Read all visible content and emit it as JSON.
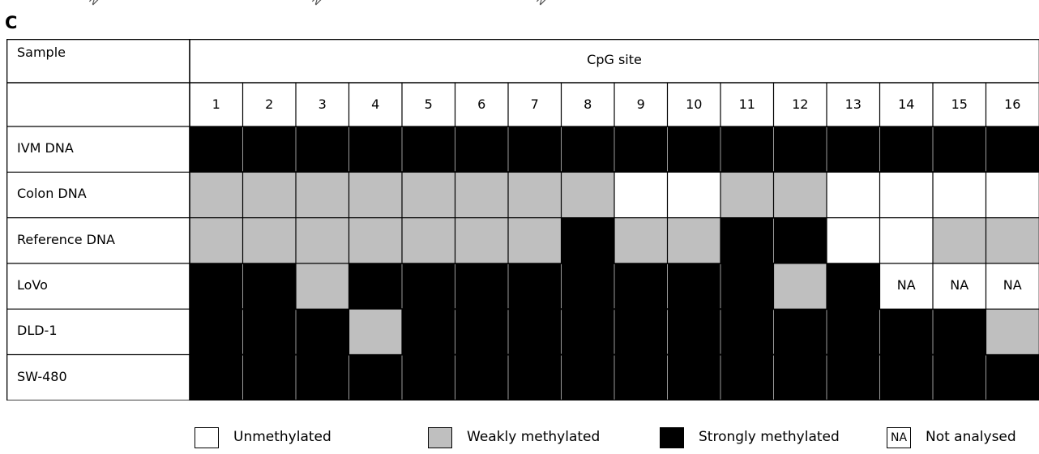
{
  "panel_label": "C",
  "colors": {
    "unmethylated": "#ffffff",
    "weakly": "#bfbfbf",
    "strongly": "#000000",
    "na": "#ffffff",
    "grid": "#000000"
  },
  "chart_data": {
    "type": "table",
    "header_sample": "Sample",
    "header_sites": "CpG site",
    "sites": [
      "1",
      "2",
      "3",
      "4",
      "5",
      "6",
      "7",
      "8",
      "9",
      "10",
      "11",
      "12",
      "13",
      "14",
      "15",
      "16"
    ],
    "rows": [
      {
        "sample": "IVM DNA",
        "states": [
          "S",
          "S",
          "S",
          "S",
          "S",
          "S",
          "S",
          "S",
          "S",
          "S",
          "S",
          "S",
          "S",
          "S",
          "S",
          "S"
        ]
      },
      {
        "sample": "Colon DNA",
        "states": [
          "W",
          "W",
          "W",
          "W",
          "W",
          "W",
          "W",
          "W",
          "U",
          "U",
          "W",
          "W",
          "U",
          "U",
          "U",
          "U"
        ]
      },
      {
        "sample": "Reference DNA",
        "states": [
          "W",
          "W",
          "W",
          "W",
          "W",
          "W",
          "W",
          "S",
          "W",
          "W",
          "S",
          "S",
          "U",
          "U",
          "W",
          "W"
        ]
      },
      {
        "sample": "LoVo",
        "states": [
          "S",
          "S",
          "W",
          "S",
          "S",
          "S",
          "S",
          "S",
          "S",
          "S",
          "S",
          "W",
          "S",
          "NA",
          "NA",
          "NA"
        ]
      },
      {
        "sample": "DLD-1",
        "states": [
          "S",
          "S",
          "S",
          "W",
          "S",
          "S",
          "S",
          "S",
          "S",
          "S",
          "S",
          "S",
          "S",
          "S",
          "S",
          "W"
        ]
      },
      {
        "sample": "SW-480",
        "states": [
          "S",
          "S",
          "S",
          "S",
          "S",
          "S",
          "S",
          "S",
          "S",
          "S",
          "S",
          "S",
          "S",
          "S",
          "S",
          "S"
        ]
      }
    ],
    "na_text": "NA",
    "legend": [
      {
        "key": "U",
        "label": "Unmethylated",
        "swatch_text": ""
      },
      {
        "key": "W",
        "label": "Weakly methylated",
        "swatch_text": ""
      },
      {
        "key": "S",
        "label": "Strongly methylated",
        "swatch_text": ""
      },
      {
        "key": "NA",
        "label": "Not analysed",
        "swatch_text": "NA"
      }
    ]
  }
}
